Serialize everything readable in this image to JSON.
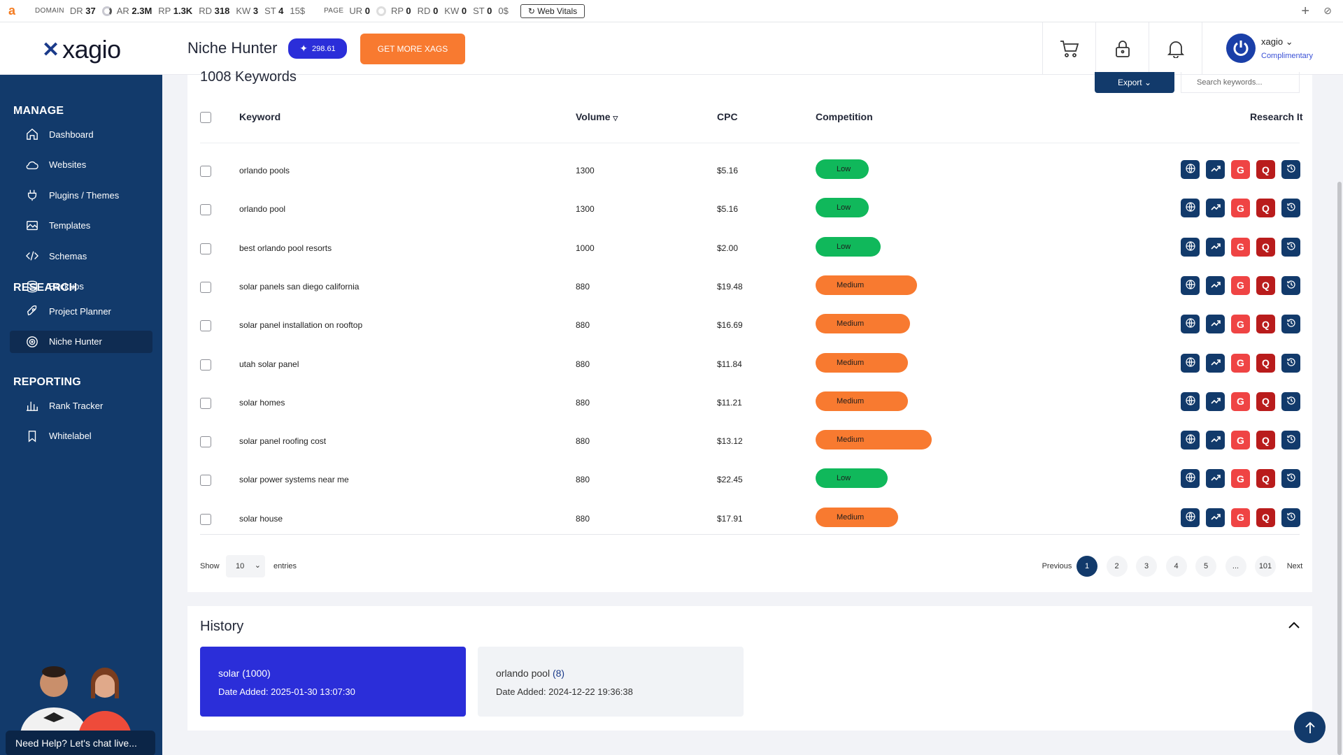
{
  "seo_bar": {
    "logo": "a",
    "domain_label": "DOMAIN",
    "domain_metrics": [
      {
        "k": "DR",
        "v": "37"
      },
      {
        "k": "AR",
        "v": "2.3M"
      },
      {
        "k": "RP",
        "v": "1.3K"
      },
      {
        "k": "RD",
        "v": "318"
      },
      {
        "k": "KW",
        "v": "3"
      },
      {
        "k": "ST",
        "v": "4"
      }
    ],
    "domain_cost": "15$",
    "page_label": "PAGE",
    "page_metrics": [
      {
        "k": "UR",
        "v": "0"
      },
      {
        "k": "RP",
        "v": "0"
      },
      {
        "k": "RD",
        "v": "0"
      },
      {
        "k": "KW",
        "v": "0"
      },
      {
        "k": "ST",
        "v": "0"
      }
    ],
    "page_cost": "0$",
    "web_vitals": "Web Vitals"
  },
  "header": {
    "logo_text": "xagio",
    "page_title": "Niche Hunter",
    "xags_balance": "298.61",
    "get_more_label": "GET MORE XAGS",
    "user_name": "xagio",
    "user_plan": "Complimentary"
  },
  "sidebar": {
    "sections": [
      {
        "title": "MANAGE",
        "items": [
          {
            "label": "Dashboard",
            "icon": "home-icon"
          },
          {
            "label": "Websites",
            "icon": "cloud-icon"
          },
          {
            "label": "Plugins / Themes",
            "icon": "plug-icon"
          },
          {
            "label": "Templates",
            "icon": "image-icon"
          },
          {
            "label": "Schemas",
            "icon": "code-icon"
          },
          {
            "label": "Backups",
            "icon": "database-icon"
          }
        ]
      },
      {
        "title": "RESEARCH",
        "items": [
          {
            "label": "Project Planner",
            "icon": "rocket-icon"
          },
          {
            "label": "Niche Hunter",
            "icon": "target-icon",
            "active": true
          }
        ]
      },
      {
        "title": "REPORTING",
        "items": [
          {
            "label": "Rank Tracker",
            "icon": "bar-chart-icon"
          },
          {
            "label": "Whitelabel",
            "icon": "bookmark-icon"
          }
        ]
      }
    ],
    "help_text": "Need Help? Let's chat live..."
  },
  "keywords": {
    "title": "1008 Keywords",
    "export_label": "Export",
    "search_placeholder": "Search keywords...",
    "columns": {
      "keyword": "Keyword",
      "volume": "Volume",
      "cpc": "CPC",
      "competition": "Competition",
      "research": "Research It"
    },
    "rows": [
      {
        "keyword": "orlando pools",
        "volume": "1300",
        "cpc": "$5.16",
        "competition": "Low",
        "level": 0.17
      },
      {
        "keyword": "orlando pool",
        "volume": "1300",
        "cpc": "$5.16",
        "competition": "Low",
        "level": 0.17
      },
      {
        "keyword": "best orlando pool resorts",
        "volume": "1000",
        "cpc": "$2.00",
        "competition": "Low",
        "level": 0.25
      },
      {
        "keyword": "solar panels san diego california",
        "volume": "880",
        "cpc": "$19.48",
        "competition": "Medium",
        "level": 0.5
      },
      {
        "keyword": "solar panel installation on rooftop",
        "volume": "880",
        "cpc": "$16.69",
        "competition": "Medium",
        "level": 0.45
      },
      {
        "keyword": "utah solar panel",
        "volume": "880",
        "cpc": "$11.84",
        "competition": "Medium",
        "level": 0.44
      },
      {
        "keyword": "solar homes",
        "volume": "880",
        "cpc": "$11.21",
        "competition": "Medium",
        "level": 0.44
      },
      {
        "keyword": "solar panel roofing cost",
        "volume": "880",
        "cpc": "$13.12",
        "competition": "Medium",
        "level": 0.6
      },
      {
        "keyword": "solar power systems near me",
        "volume": "880",
        "cpc": "$22.45",
        "competition": "Low",
        "level": 0.3
      },
      {
        "keyword": "solar house",
        "volume": "880",
        "cpc": "$17.91",
        "competition": "Medium",
        "level": 0.37
      }
    ],
    "research_buttons": [
      {
        "icon": "globe-icon",
        "color": "#123a6b"
      },
      {
        "icon": "trending-icon",
        "color": "#123a6b"
      },
      {
        "icon": "google-icon",
        "color": "#ef4444",
        "glyph": "G"
      },
      {
        "icon": "quora-icon",
        "color": "#b91c1c",
        "glyph": "Q"
      },
      {
        "icon": "history-icon",
        "color": "#123a6b"
      }
    ],
    "show_label": "Show",
    "entries_value": "10",
    "entries_label": "entries",
    "pagination": {
      "previous": "Previous",
      "pages": [
        "1",
        "2",
        "3",
        "4",
        "5",
        "...",
        "101"
      ],
      "current": "1",
      "next": "Next"
    }
  },
  "history": {
    "title": "History",
    "items": [
      {
        "name": "solar",
        "count": "(1000)",
        "date": "Date Added: 2025-01-30 13:07:30",
        "active": true
      },
      {
        "name": "orlando pool",
        "count": "(8)",
        "date": "Date Added: 2024-12-22 19:36:38",
        "active": false
      }
    ]
  },
  "colors": {
    "sidebar": "#123a6b",
    "accent_orange": "#f87a30",
    "low": "#10b85b",
    "medium": "#f87a30",
    "history_active": "#2b2ed9"
  }
}
